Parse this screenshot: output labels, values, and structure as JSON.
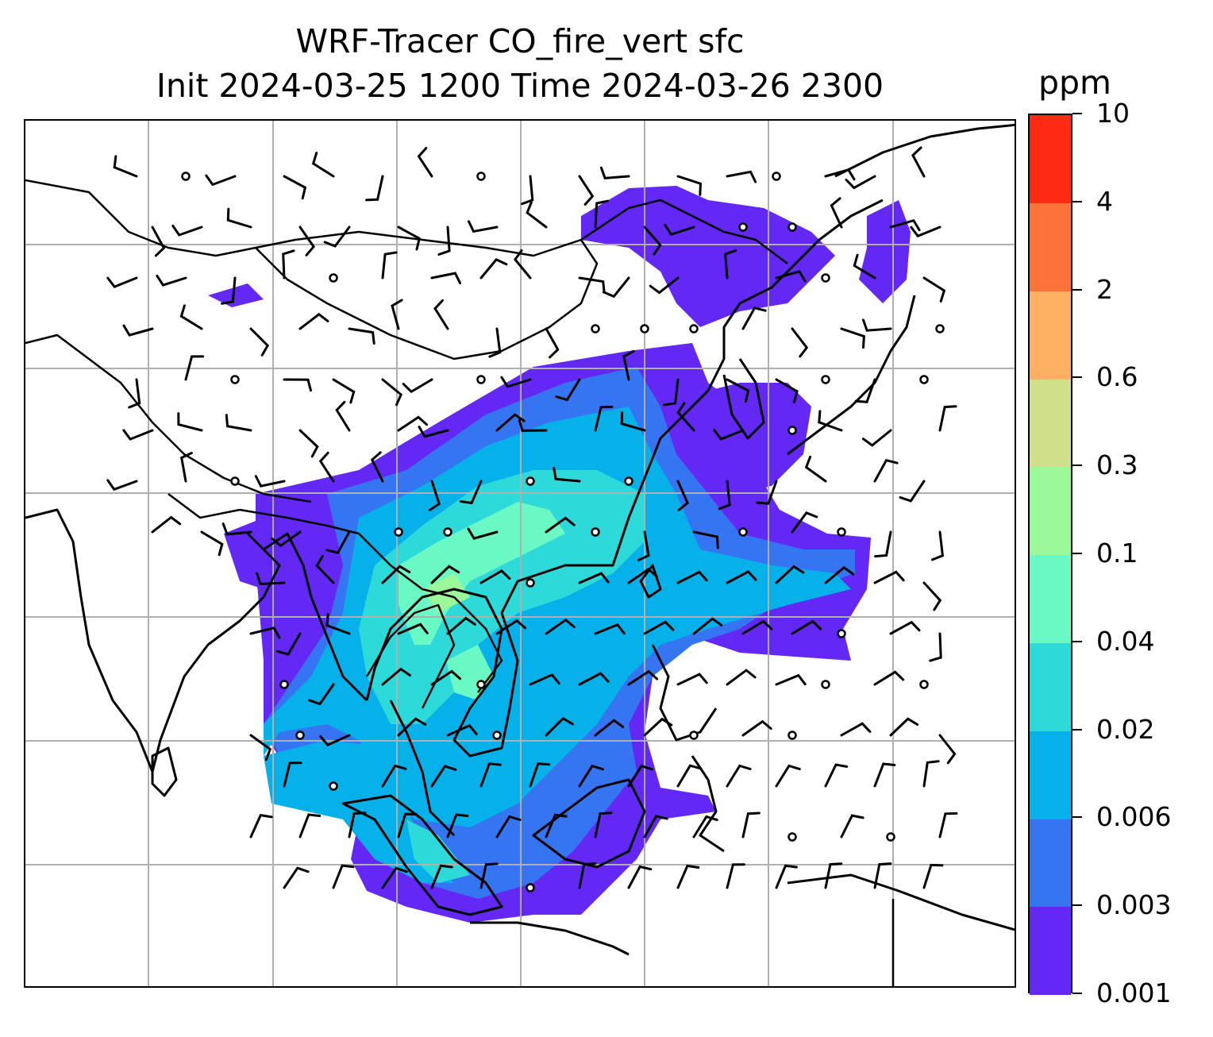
{
  "title": {
    "line1": "WRF-Tracer CO_fire_vert sfc",
    "line2": "Init 2024-03-25 1200 Time 2024-03-26 2300"
  },
  "colorbar": {
    "unit": "ppm",
    "levels": [
      "0.001",
      "0.003",
      "0.006",
      "0.02",
      "0.04",
      "0.1",
      "0.3",
      "0.6",
      "2",
      "4",
      "10"
    ],
    "colors": [
      "#6428f5",
      "#3675f2",
      "#06b1ea",
      "#2ed9d9",
      "#6af8c4",
      "#9cf99a",
      "#d0e08a",
      "#feb063",
      "#fd713a",
      "#ff2a13"
    ]
  },
  "map": {
    "gridlines": true,
    "features": [
      "coastlines",
      "country-borders",
      "wind-barbs",
      "calm-wind-circles"
    ]
  }
}
